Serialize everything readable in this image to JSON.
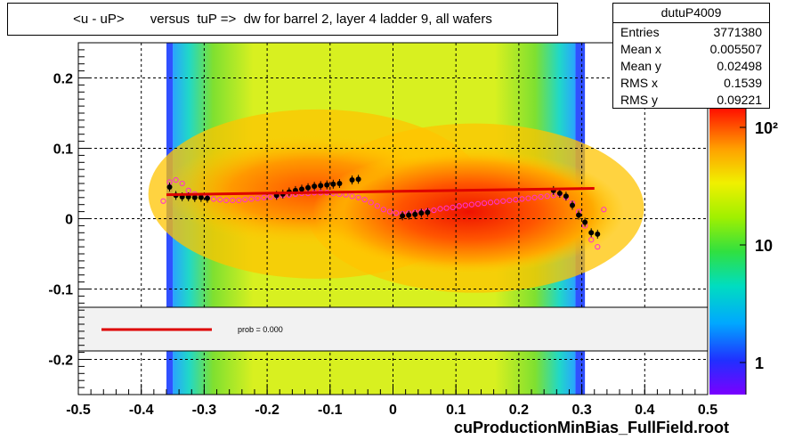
{
  "title": "<u - uP>       versus  tuP =>  dw for barrel 2, layer 4 ladder 9, all wafers",
  "stats": {
    "name": "dutuP4009",
    "rows": [
      {
        "label": "Entries",
        "value": "3771380"
      },
      {
        "label": "Mean x",
        "value": "0.005507"
      },
      {
        "label": "Mean y",
        "value": "0.02498"
      },
      {
        "label": "RMS x",
        "value": "0.1539"
      },
      {
        "label": "RMS y",
        "value": "0.09221"
      }
    ]
  },
  "legend": {
    "text": "prob = 0.000"
  },
  "footer": "cuProductionMinBias_FullField.root",
  "colors": {
    "fit_line": "#dd0000",
    "profile_points": "#000000",
    "open_markers": "#ff33cc"
  },
  "chart_data": {
    "type": "heatmap",
    "xlim": [
      -0.5,
      0.5
    ],
    "ylim": [
      -0.25,
      0.25
    ],
    "x_ticks": [
      "-0.5",
      "-0.4",
      "-0.3",
      "-0.2",
      "-0.1",
      "0",
      "0.1",
      "0.2",
      "0.3",
      "0.4",
      "0.5"
    ],
    "y_ticks": [
      "-0.2",
      "-0.1",
      "0",
      "0.1",
      "0.2"
    ],
    "grid": true,
    "colorbar": {
      "scale": "log",
      "labels": [
        "1",
        "10",
        "10²"
      ]
    },
    "profile_points": {
      "x": [
        -0.355,
        -0.345,
        -0.335,
        -0.325,
        -0.315,
        -0.305,
        -0.295,
        -0.185,
        -0.175,
        -0.165,
        -0.155,
        -0.145,
        -0.135,
        -0.125,
        -0.115,
        -0.105,
        -0.095,
        -0.085,
        -0.065,
        -0.055,
        0.015,
        0.025,
        0.035,
        0.045,
        0.055,
        0.255,
        0.265,
        0.275,
        0.285,
        0.295,
        0.305,
        0.315,
        0.325
      ],
      "y": [
        0.045,
        0.033,
        0.031,
        0.031,
        0.03,
        0.03,
        0.029,
        0.033,
        0.035,
        0.038,
        0.04,
        0.042,
        0.044,
        0.046,
        0.047,
        0.048,
        0.049,
        0.05,
        0.055,
        0.056,
        0.004,
        0.005,
        0.006,
        0.008,
        0.009,
        0.04,
        0.036,
        0.032,
        0.019,
        0.005,
        -0.005,
        -0.02,
        -0.022
      ]
    },
    "open_markers": {
      "x": [
        -0.365,
        -0.355,
        -0.345,
        -0.335,
        -0.325,
        -0.315,
        -0.305,
        -0.295,
        -0.285,
        -0.275,
        -0.265,
        -0.255,
        -0.245,
        -0.235,
        -0.225,
        -0.215,
        -0.205,
        -0.195,
        -0.185,
        -0.175,
        -0.165,
        -0.155,
        -0.145,
        -0.135,
        -0.125,
        -0.115,
        -0.105,
        -0.095,
        -0.085,
        -0.075,
        -0.065,
        -0.055,
        -0.045,
        -0.035,
        -0.025,
        -0.015,
        -0.005,
        0.005,
        0.015,
        0.025,
        0.035,
        0.045,
        0.055,
        0.065,
        0.075,
        0.085,
        0.095,
        0.105,
        0.115,
        0.125,
        0.135,
        0.145,
        0.155,
        0.165,
        0.175,
        0.185,
        0.195,
        0.205,
        0.215,
        0.225,
        0.235,
        0.245,
        0.255,
        0.265,
        0.275,
        0.285,
        0.295,
        0.305,
        0.315,
        0.325,
        0.335
      ],
      "y": [
        0.025,
        0.052,
        0.055,
        0.05,
        0.04,
        0.035,
        0.032,
        0.03,
        0.028,
        0.027,
        0.026,
        0.026,
        0.026,
        0.027,
        0.028,
        0.029,
        0.03,
        0.031,
        0.032,
        0.033,
        0.034,
        0.035,
        0.036,
        0.036,
        0.037,
        0.037,
        0.037,
        0.036,
        0.035,
        0.034,
        0.032,
        0.03,
        0.027,
        0.023,
        0.018,
        0.013,
        0.01,
        0.008,
        0.007,
        0.008,
        0.009,
        0.01,
        0.011,
        0.012,
        0.014,
        0.015,
        0.016,
        0.018,
        0.019,
        0.02,
        0.021,
        0.022,
        0.023,
        0.024,
        0.025,
        0.026,
        0.027,
        0.028,
        0.029,
        0.03,
        0.031,
        0.032,
        0.033,
        0.035,
        0.03,
        0.022,
        0.01,
        -0.01,
        -0.03,
        -0.04,
        0.013
      ]
    },
    "fit_line": {
      "x": [
        -0.36,
        0.32
      ],
      "y": [
        0.034,
        0.043
      ]
    }
  }
}
